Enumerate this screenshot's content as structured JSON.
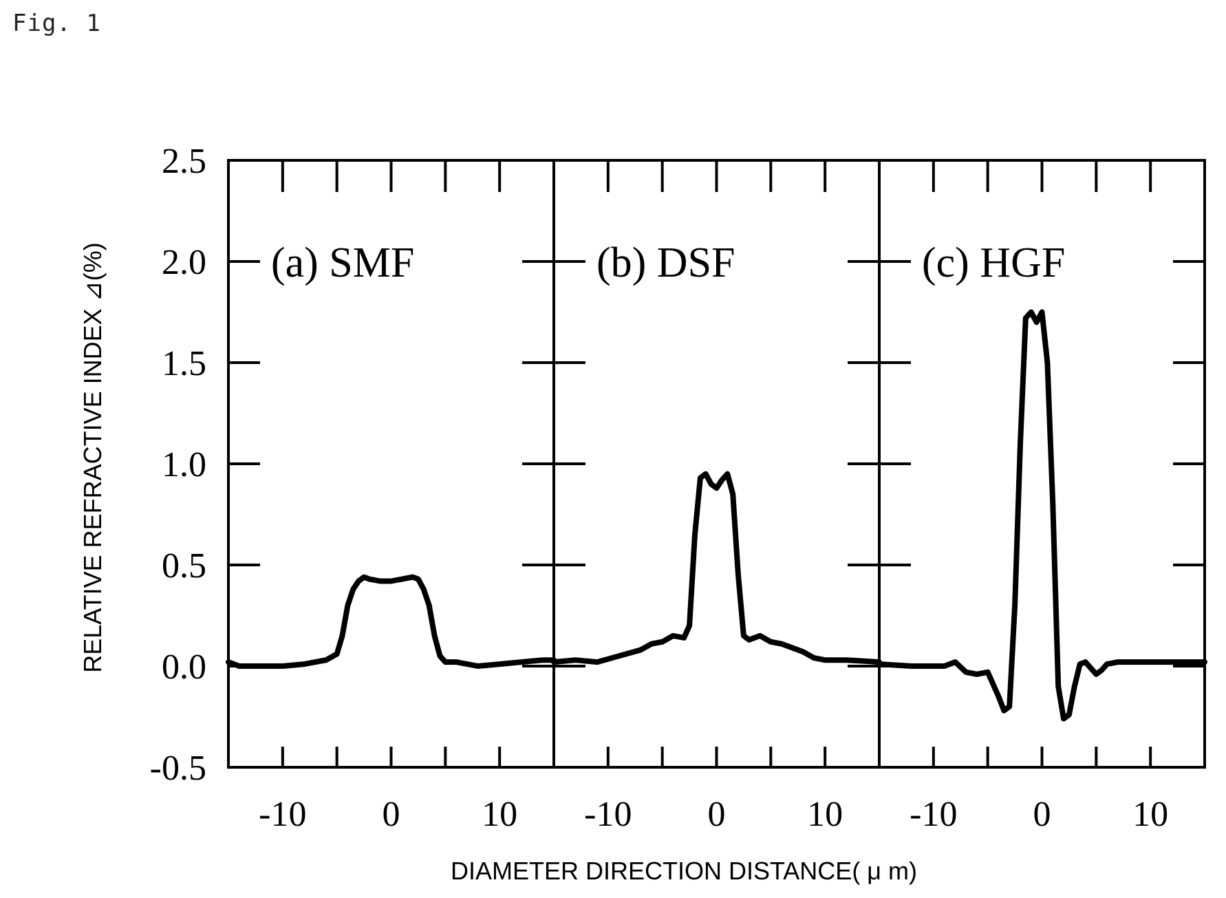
{
  "figure_label": "Fig. 1",
  "chart_data": {
    "type": "line",
    "ylabel": "RELATIVE REFRACTIVE INDEX ⊿(%)",
    "xlabel": "DIAMETER DIRECTION DISTANCE( μ m)",
    "ylim": [
      -0.5,
      2.5
    ],
    "yticks": [
      -0.5,
      0.0,
      0.5,
      1.0,
      1.5,
      2.0,
      2.5
    ],
    "ytick_labels": [
      "-0.5",
      "0.0",
      "0.5",
      "1.0",
      "1.5",
      "2.0",
      "2.5"
    ],
    "xlim": [
      -15,
      15
    ],
    "xticks": [
      -10,
      0,
      10
    ],
    "xtick_labels": [
      "-10",
      "0",
      "10"
    ],
    "grid": false,
    "panels": [
      {
        "title": "(a) SMF",
        "x": [
          -15,
          -14,
          -12,
          -10,
          -8,
          -6,
          -5,
          -4.5,
          -4,
          -3.5,
          -3,
          -2.5,
          -2,
          -1,
          0,
          1,
          2,
          2.5,
          3,
          3.5,
          4,
          4.5,
          5,
          6,
          8,
          10,
          12,
          14,
          15
        ],
        "y": [
          0.02,
          0.0,
          0.0,
          0.0,
          0.01,
          0.03,
          0.06,
          0.15,
          0.3,
          0.38,
          0.42,
          0.44,
          0.43,
          0.42,
          0.42,
          0.43,
          0.44,
          0.43,
          0.38,
          0.3,
          0.15,
          0.05,
          0.02,
          0.02,
          0.0,
          0.01,
          0.02,
          0.03,
          0.03
        ]
      },
      {
        "title": "(b) DSF",
        "x": [
          -15,
          -13,
          -11,
          -9,
          -7,
          -6,
          -5,
          -4,
          -3,
          -2.5,
          -2,
          -1.5,
          -1,
          -0.5,
          0,
          0.5,
          1,
          1.5,
          2,
          2.5,
          3,
          4,
          5,
          6,
          7,
          8,
          9,
          10,
          12,
          15
        ],
        "y": [
          0.02,
          0.03,
          0.02,
          0.05,
          0.08,
          0.11,
          0.12,
          0.15,
          0.14,
          0.2,
          0.65,
          0.93,
          0.95,
          0.9,
          0.88,
          0.92,
          0.95,
          0.85,
          0.45,
          0.15,
          0.13,
          0.15,
          0.12,
          0.11,
          0.09,
          0.07,
          0.04,
          0.03,
          0.03,
          0.02
        ]
      },
      {
        "title": "(c) HGF",
        "x": [
          -15,
          -12,
          -10,
          -9,
          -8,
          -7,
          -6,
          -5,
          -4,
          -3.5,
          -3,
          -2.5,
          -2,
          -1.5,
          -1,
          -0.5,
          0,
          0.5,
          1,
          1.5,
          2,
          2.5,
          3,
          3.5,
          4,
          4.5,
          5,
          5.5,
          6,
          7,
          8,
          10,
          12,
          15
        ],
        "y": [
          0.01,
          0.0,
          0.0,
          0.0,
          0.02,
          -0.03,
          -0.04,
          -0.03,
          -0.15,
          -0.22,
          -0.2,
          0.3,
          1.1,
          1.72,
          1.75,
          1.7,
          1.75,
          1.5,
          0.8,
          -0.1,
          -0.26,
          -0.24,
          -0.1,
          0.01,
          0.02,
          -0.01,
          -0.04,
          -0.02,
          0.01,
          0.02,
          0.02,
          0.02,
          0.02,
          0.02
        ]
      }
    ]
  }
}
